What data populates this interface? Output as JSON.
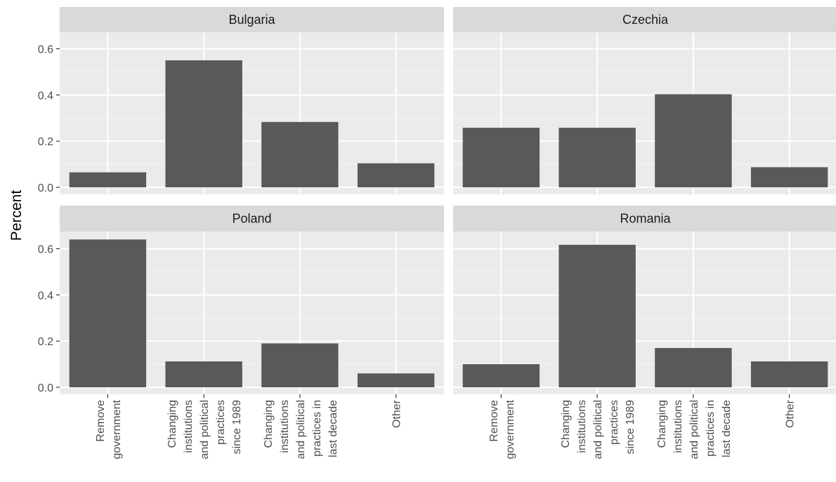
{
  "chart_data": {
    "type": "bar",
    "ylabel": "Percent",
    "xlabel": "",
    "ylim": [
      0,
      0.65
    ],
    "y_ticks": [
      "0.0",
      "0.2",
      "0.4",
      "0.6"
    ],
    "categories": [
      [
        "Remove",
        "government"
      ],
      [
        "Changing",
        "institutions",
        "and political",
        "practices",
        "since 1989"
      ],
      [
        "Changing",
        "institutions",
        "and political",
        "practices in",
        "last decade"
      ],
      [
        "Other"
      ]
    ],
    "panels": [
      {
        "name": "Bulgaria",
        "values": [
          0.065,
          0.55,
          0.283,
          0.104
        ]
      },
      {
        "name": "Czechia",
        "values": [
          0.258,
          0.258,
          0.403,
          0.087
        ]
      },
      {
        "name": "Poland",
        "values": [
          0.64,
          0.112,
          0.19,
          0.06
        ]
      },
      {
        "name": "Romania",
        "values": [
          0.1,
          0.617,
          0.17,
          0.112
        ]
      }
    ],
    "bar_color": "#595959",
    "panel_background": "#ebebeb",
    "strip_background": "#d9d9d9",
    "grid": true
  }
}
